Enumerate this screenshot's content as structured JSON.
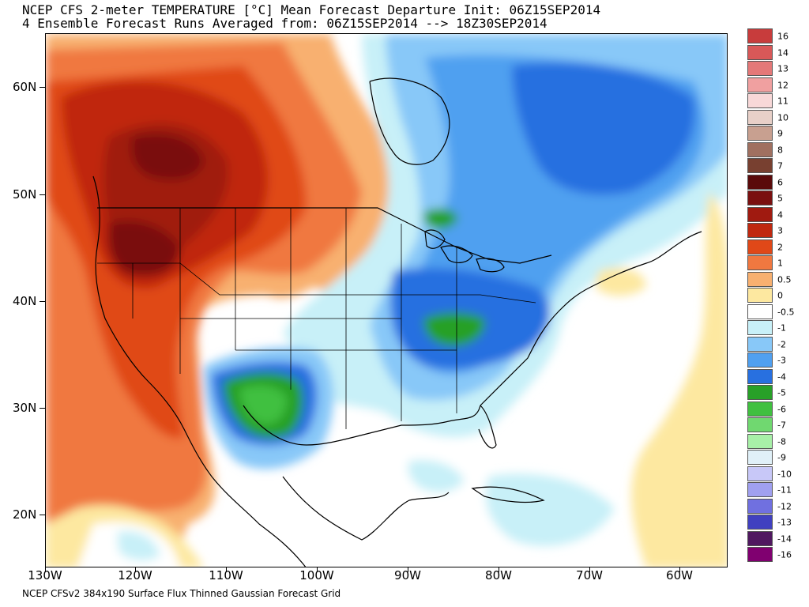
{
  "title": {
    "line1": "NCEP CFS 2-meter TEMPERATURE [°C] Mean Forecast Departure Init: 06Z15SEP2014",
    "line2": "4 Ensemble Forecast Runs Averaged from: 06Z15SEP2014 --> 18Z30SEP2014"
  },
  "footer": "NCEP CFSv2 384x190 Surface Flux Thinned Gaussian Forecast Grid",
  "map": {
    "lat_labels": [
      "60N",
      "50N",
      "40N",
      "30N",
      "20N"
    ],
    "lon_labels": [
      "130W",
      "120W",
      "110W",
      "100W",
      "90W",
      "80W",
      "70W",
      "60W"
    ],
    "regions": [
      {
        "name": "western-warm-anomaly",
        "value": "+6"
      },
      {
        "name": "southwest-cold-anomaly",
        "value": "-4"
      },
      {
        "name": "ohio-valley-cold-anomaly",
        "value": "-4"
      },
      {
        "name": "upper-michigan-cold-anomaly",
        "value": "-3"
      }
    ]
  },
  "colorbar": {
    "labels": [
      "16",
      "14",
      "13",
      "12",
      "11",
      "10",
      "9",
      "8",
      "7",
      "6",
      "5",
      "4",
      "3",
      "2",
      "1",
      "0.5",
      "0",
      "-0.5",
      "-1",
      "-2",
      "-3",
      "-4",
      "-5",
      "-6",
      "-7",
      "-8",
      "-9",
      "-10",
      "-11",
      "-12",
      "-13",
      "-14",
      "-16"
    ],
    "colors": [
      "#c83c3c",
      "#d85858",
      "#e47878",
      "#f0a0a0",
      "#f8d8d8",
      "#e8d0c8",
      "#c8a090",
      "#a07060",
      "#784030",
      "#5a0a0a",
      "#7a1010",
      "#a01a10",
      "#c02810",
      "#e04818",
      "#f07840",
      "#f8b070",
      "#fde8a0",
      "#ffffff",
      "#c8f0f8",
      "#88c8f8",
      "#50a0f0",
      "#2870e0",
      "#28a028",
      "#40c040",
      "#70d870",
      "#a8f0a8",
      "#e0f0f8",
      "#c8c8f8",
      "#a0a0f0",
      "#7070e0",
      "#4040c0",
      "#501860",
      "#800070"
    ]
  }
}
